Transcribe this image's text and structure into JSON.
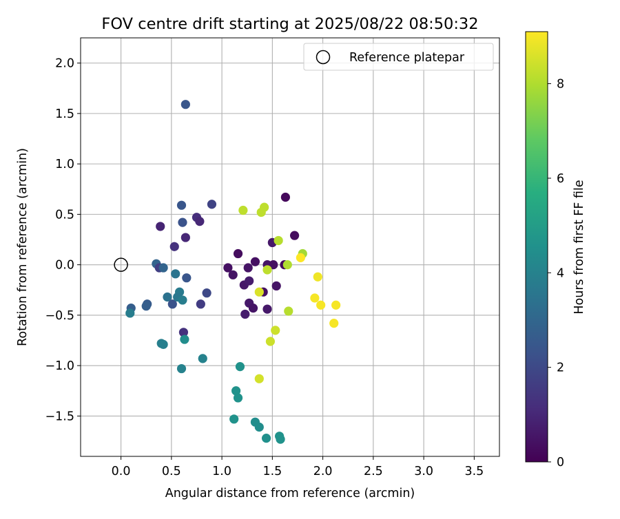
{
  "chart_data": {
    "type": "scatter",
    "title": "FOV centre drift starting at 2025/08/22 08:50:32",
    "xlabel": "Angular distance from reference (arcmin)",
    "ylabel": "Rotation from reference (arcmin)",
    "xlim": [
      -0.4,
      3.75
    ],
    "ylim": [
      -1.9,
      2.25
    ],
    "xticks": [
      0.0,
      0.5,
      1.0,
      1.5,
      2.0,
      2.5,
      3.0,
      3.5
    ],
    "xtick_labels": [
      "0.0",
      "0.5",
      "1.0",
      "1.5",
      "2.0",
      "2.5",
      "3.0",
      "3.5"
    ],
    "yticks": [
      -1.5,
      -1.0,
      -0.5,
      0.0,
      0.5,
      1.0,
      1.5,
      2.0
    ],
    "ytick_labels": [
      "−1.5",
      "−1.0",
      "−0.5",
      "0.0",
      "0.5",
      "1.0",
      "1.5",
      "2.0"
    ],
    "grid": true,
    "legend": {
      "position": "top-right",
      "entries": [
        "Reference platepar"
      ]
    },
    "reference_point": {
      "x": 0.0,
      "y": 0.0
    },
    "colorbar": {
      "label": "Hours from first FF file",
      "colormap": "viridis",
      "range": [
        0,
        9.1
      ],
      "ticks": [
        0,
        2,
        4,
        6,
        8
      ],
      "tick_labels": [
        "0",
        "2",
        "4",
        "6",
        "8"
      ]
    },
    "points": [
      {
        "x": 0.64,
        "y": 1.59,
        "h": 2.4
      },
      {
        "x": 0.6,
        "y": 0.59,
        "h": 2.4
      },
      {
        "x": 0.61,
        "y": 0.42,
        "h": 2.3
      },
      {
        "x": 0.9,
        "y": 0.6,
        "h": 1.8
      },
      {
        "x": 0.75,
        "y": 0.47,
        "h": 1.2
      },
      {
        "x": 0.78,
        "y": 0.43,
        "h": 1.0
      },
      {
        "x": 0.39,
        "y": 0.38,
        "h": 0.9
      },
      {
        "x": 0.64,
        "y": 0.27,
        "h": 1.0
      },
      {
        "x": 0.53,
        "y": 0.18,
        "h": 1.3
      },
      {
        "x": 0.35,
        "y": 0.01,
        "h": 2.9
      },
      {
        "x": 0.38,
        "y": -0.03,
        "h": 1.7
      },
      {
        "x": 0.42,
        "y": -0.03,
        "h": 2.9
      },
      {
        "x": 0.54,
        "y": -0.09,
        "h": 3.5
      },
      {
        "x": 0.65,
        "y": -0.13,
        "h": 2.4
      },
      {
        "x": 0.85,
        "y": -0.28,
        "h": 2.0
      },
      {
        "x": 0.79,
        "y": -0.39,
        "h": 1.6
      },
      {
        "x": 0.46,
        "y": -0.32,
        "h": 3.4
      },
      {
        "x": 0.58,
        "y": -0.27,
        "h": 3.7
      },
      {
        "x": 0.51,
        "y": -0.39,
        "h": 2.3
      },
      {
        "x": 0.56,
        "y": -0.32,
        "h": 3.6
      },
      {
        "x": 0.61,
        "y": -0.35,
        "h": 3.8
      },
      {
        "x": 0.26,
        "y": -0.39,
        "h": 2.6
      },
      {
        "x": 0.25,
        "y": -0.41,
        "h": 2.7
      },
      {
        "x": 0.1,
        "y": -0.43,
        "h": 2.7
      },
      {
        "x": 0.09,
        "y": -0.48,
        "h": 3.8
      },
      {
        "x": 0.62,
        "y": -0.67,
        "h": 1.3
      },
      {
        "x": 0.63,
        "y": -0.74,
        "h": 4.4
      },
      {
        "x": 0.4,
        "y": -0.78,
        "h": 3.9
      },
      {
        "x": 0.42,
        "y": -0.79,
        "h": 3.9
      },
      {
        "x": 0.81,
        "y": -0.93,
        "h": 4.0
      },
      {
        "x": 0.6,
        "y": -1.03,
        "h": 4.0
      },
      {
        "x": 1.18,
        "y": -1.01,
        "h": 4.6
      },
      {
        "x": 1.14,
        "y": -1.25,
        "h": 4.6
      },
      {
        "x": 1.16,
        "y": -1.32,
        "h": 4.6
      },
      {
        "x": 1.12,
        "y": -1.53,
        "h": 4.6
      },
      {
        "x": 1.33,
        "y": -1.56,
        "h": 4.4
      },
      {
        "x": 1.37,
        "y": -1.61,
        "h": 4.4
      },
      {
        "x": 1.44,
        "y": -1.72,
        "h": 4.5
      },
      {
        "x": 1.57,
        "y": -1.7,
        "h": 4.6
      },
      {
        "x": 1.58,
        "y": -1.73,
        "h": 4.6
      },
      {
        "x": 1.63,
        "y": 0.67,
        "h": 0.2
      },
      {
        "x": 1.72,
        "y": 0.29,
        "h": 0.3
      },
      {
        "x": 1.5,
        "y": 0.22,
        "h": 0.6
      },
      {
        "x": 1.16,
        "y": 0.11,
        "h": 0.3
      },
      {
        "x": 1.33,
        "y": 0.03,
        "h": 0.4
      },
      {
        "x": 1.06,
        "y": -0.03,
        "h": 0.4
      },
      {
        "x": 1.26,
        "y": -0.03,
        "h": 0.5
      },
      {
        "x": 1.45,
        "y": 0.0,
        "h": 0.5
      },
      {
        "x": 1.51,
        "y": 0.0,
        "h": 0.4
      },
      {
        "x": 1.62,
        "y": 0.0,
        "h": 0.2
      },
      {
        "x": 1.11,
        "y": -0.1,
        "h": 0.5
      },
      {
        "x": 1.22,
        "y": -0.2,
        "h": 0.6
      },
      {
        "x": 1.27,
        "y": -0.16,
        "h": 0.7
      },
      {
        "x": 1.41,
        "y": -0.27,
        "h": 0.4
      },
      {
        "x": 1.54,
        "y": -0.21,
        "h": 0.5
      },
      {
        "x": 1.27,
        "y": -0.38,
        "h": 0.6
      },
      {
        "x": 1.31,
        "y": -0.43,
        "h": 0.5
      },
      {
        "x": 1.45,
        "y": -0.44,
        "h": 0.6
      },
      {
        "x": 1.23,
        "y": -0.49,
        "h": 0.7
      },
      {
        "x": 1.21,
        "y": 0.54,
        "h": 8.2
      },
      {
        "x": 1.42,
        "y": 0.57,
        "h": 8.2
      },
      {
        "x": 1.39,
        "y": 0.52,
        "h": 8.2
      },
      {
        "x": 1.56,
        "y": 0.24,
        "h": 8.1
      },
      {
        "x": 1.8,
        "y": 0.11,
        "h": 7.8
      },
      {
        "x": 1.78,
        "y": 0.07,
        "h": 9.1
      },
      {
        "x": 1.65,
        "y": 0.0,
        "h": 8.0
      },
      {
        "x": 1.45,
        "y": -0.05,
        "h": 8.2
      },
      {
        "x": 1.37,
        "y": -0.27,
        "h": 8.6
      },
      {
        "x": 1.95,
        "y": -0.12,
        "h": 8.9
      },
      {
        "x": 1.92,
        "y": -0.33,
        "h": 9.0
      },
      {
        "x": 1.98,
        "y": -0.4,
        "h": 9.0
      },
      {
        "x": 2.13,
        "y": -0.4,
        "h": 9.0
      },
      {
        "x": 1.66,
        "y": -0.46,
        "h": 8.1
      },
      {
        "x": 2.11,
        "y": -0.58,
        "h": 9.0
      },
      {
        "x": 1.53,
        "y": -0.65,
        "h": 8.4
      },
      {
        "x": 1.48,
        "y": -0.76,
        "h": 8.4
      },
      {
        "x": 1.37,
        "y": -1.13,
        "h": 8.5
      }
    ]
  }
}
